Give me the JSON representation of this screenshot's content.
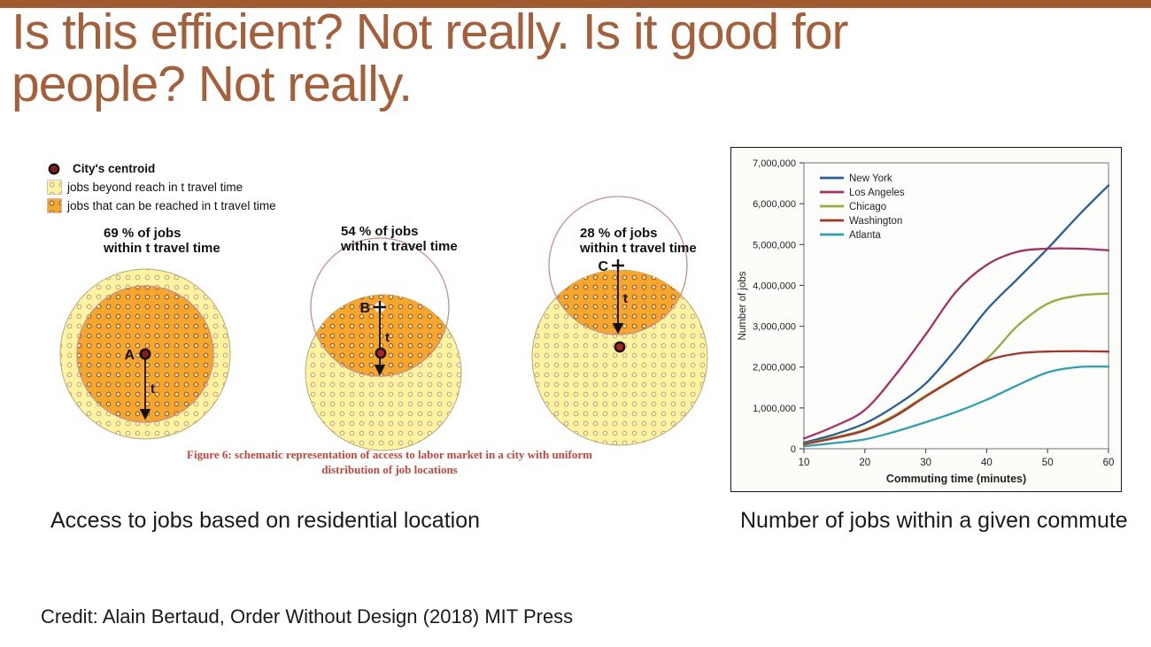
{
  "slide": {
    "title": "Is this efficient? Not really. Is it good for\npeople? Not really.",
    "title_color": "#a5603a",
    "top_bar_color": "#a25a31",
    "caption_left": "Access to jobs based on residential location",
    "caption_right": "Number of jobs within a given commute",
    "credit": "Credit: Alain Bertaud, Order Without Design (2018) MIT Press"
  },
  "diagram": {
    "legend": [
      {
        "marker": "centroid-dot",
        "label": "City's centroid"
      },
      {
        "marker": "light-dots-swatch",
        "label": "jobs beyond reach in t travel time"
      },
      {
        "marker": "orange-dots-swatch",
        "label": "jobs that can be reached in t travel time"
      }
    ],
    "panels": [
      {
        "percent_label": "69 % of jobs\nwithin t travel time",
        "point_label": "A",
        "time_label": "t"
      },
      {
        "percent_label": "54 % of jobs\nwithin t travel time",
        "point_label": "B",
        "time_label": "t"
      },
      {
        "percent_label": "28 % of jobs\nwithin t travel time",
        "point_label": "C",
        "time_label": "t"
      }
    ],
    "figure_caption": "Figure 6: schematic representation of access to labor market in a city with uniform\ndistribution of job locations",
    "figure_caption_color": "#c4473b",
    "colors": {
      "city_fill": "#fcf4a3",
      "reachable_fill": "#f4a72b",
      "travel_circle_outline": "#c4908f",
      "centroid": "#8b1a1a"
    }
  },
  "chart_data": {
    "type": "line",
    "title": "",
    "xlabel": "Commuting time (minutes)",
    "ylabel": "Number of jobs",
    "xlim": [
      10,
      60
    ],
    "ylim": [
      0,
      7000000
    ],
    "x_ticks": [
      10,
      20,
      30,
      40,
      50,
      60
    ],
    "y_ticks": [
      0,
      1000000,
      2000000,
      3000000,
      4000000,
      5000000,
      6000000,
      7000000
    ],
    "y_tick_labels": [
      "0",
      "1,000,000",
      "2,000,000",
      "3,000,000",
      "4,000,000",
      "5,000,000",
      "6,000,000",
      "7,000,000"
    ],
    "grid": false,
    "legend_position": "top-left",
    "x": [
      10,
      15,
      20,
      25,
      30,
      35,
      40,
      45,
      50,
      55,
      60
    ],
    "series": [
      {
        "name": "New York",
        "color": "#265e97",
        "values": [
          150000,
          350000,
          620000,
          1050000,
          1600000,
          2450000,
          3400000,
          4150000,
          4900000,
          5700000,
          6450000
        ]
      },
      {
        "name": "Los Angeles",
        "color": "#ab2e62",
        "values": [
          250000,
          550000,
          950000,
          1800000,
          2800000,
          3850000,
          4500000,
          4820000,
          4900000,
          4900000,
          4860000
        ]
      },
      {
        "name": "Chicago",
        "color": "#8fae3b",
        "values": [
          120000,
          280000,
          470000,
          830000,
          1300000,
          1750000,
          2200000,
          3000000,
          3550000,
          3750000,
          3800000
        ]
      },
      {
        "name": "Washington",
        "color": "#aa3226",
        "values": [
          110000,
          260000,
          450000,
          800000,
          1280000,
          1730000,
          2150000,
          2330000,
          2380000,
          2390000,
          2380000
        ]
      },
      {
        "name": "Atlanta",
        "color": "#2aa2b3",
        "values": [
          60000,
          140000,
          230000,
          420000,
          650000,
          900000,
          1200000,
          1550000,
          1870000,
          2000000,
          2010000
        ]
      }
    ]
  }
}
